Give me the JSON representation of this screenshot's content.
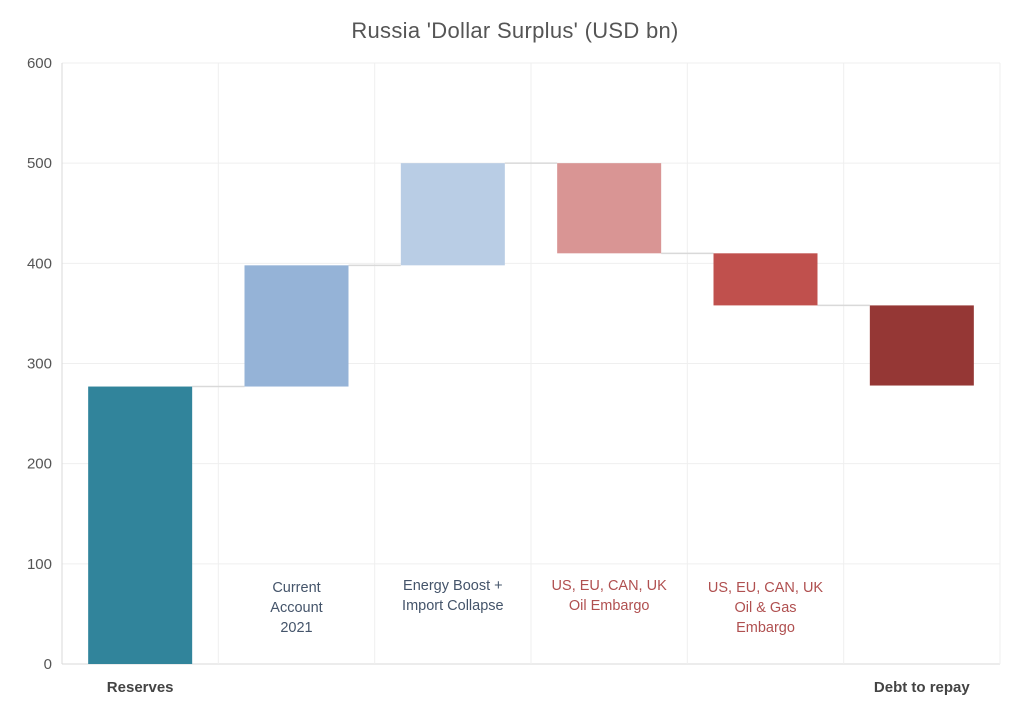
{
  "chart_data": {
    "type": "waterfall",
    "title": "Russia 'Dollar Surplus' (USD bn)",
    "xlabel": "",
    "ylabel": "",
    "ylim": [
      0,
      600
    ],
    "yticks": [
      0,
      100,
      200,
      300,
      400,
      500,
      600
    ],
    "grid": true,
    "categories": [
      {
        "inner_label": [
          "",
          ""
        ],
        "axis_label": "Reserves",
        "start": 0,
        "end": 277,
        "color": "#31849b",
        "label_color": "#44546a"
      },
      {
        "inner_label": [
          "Current",
          "Account",
          "2021"
        ],
        "axis_label": "",
        "start": 277,
        "end": 398,
        "color": "#95b3d7",
        "label_color": "#44546a"
      },
      {
        "inner_label": [
          "Energy Boost +",
          "Import Collapse"
        ],
        "axis_label": "",
        "start": 398,
        "end": 500,
        "color": "#b9cde5",
        "label_color": "#44546a"
      },
      {
        "inner_label": [
          "US, EU, CAN, UK",
          "Oil Embargo"
        ],
        "axis_label": "",
        "start": 500,
        "end": 410,
        "color": "#d99594",
        "label_color": "#b05050"
      },
      {
        "inner_label": [
          "US, EU, CAN, UK",
          "Oil & Gas",
          "Embargo"
        ],
        "axis_label": "",
        "start": 410,
        "end": 358,
        "color": "#c0504d",
        "label_color": "#b05050"
      },
      {
        "inner_label": [],
        "axis_label": "Debt to repay",
        "start": 358,
        "end": 278,
        "color": "#953735",
        "label_color": "#44546a"
      }
    ]
  }
}
